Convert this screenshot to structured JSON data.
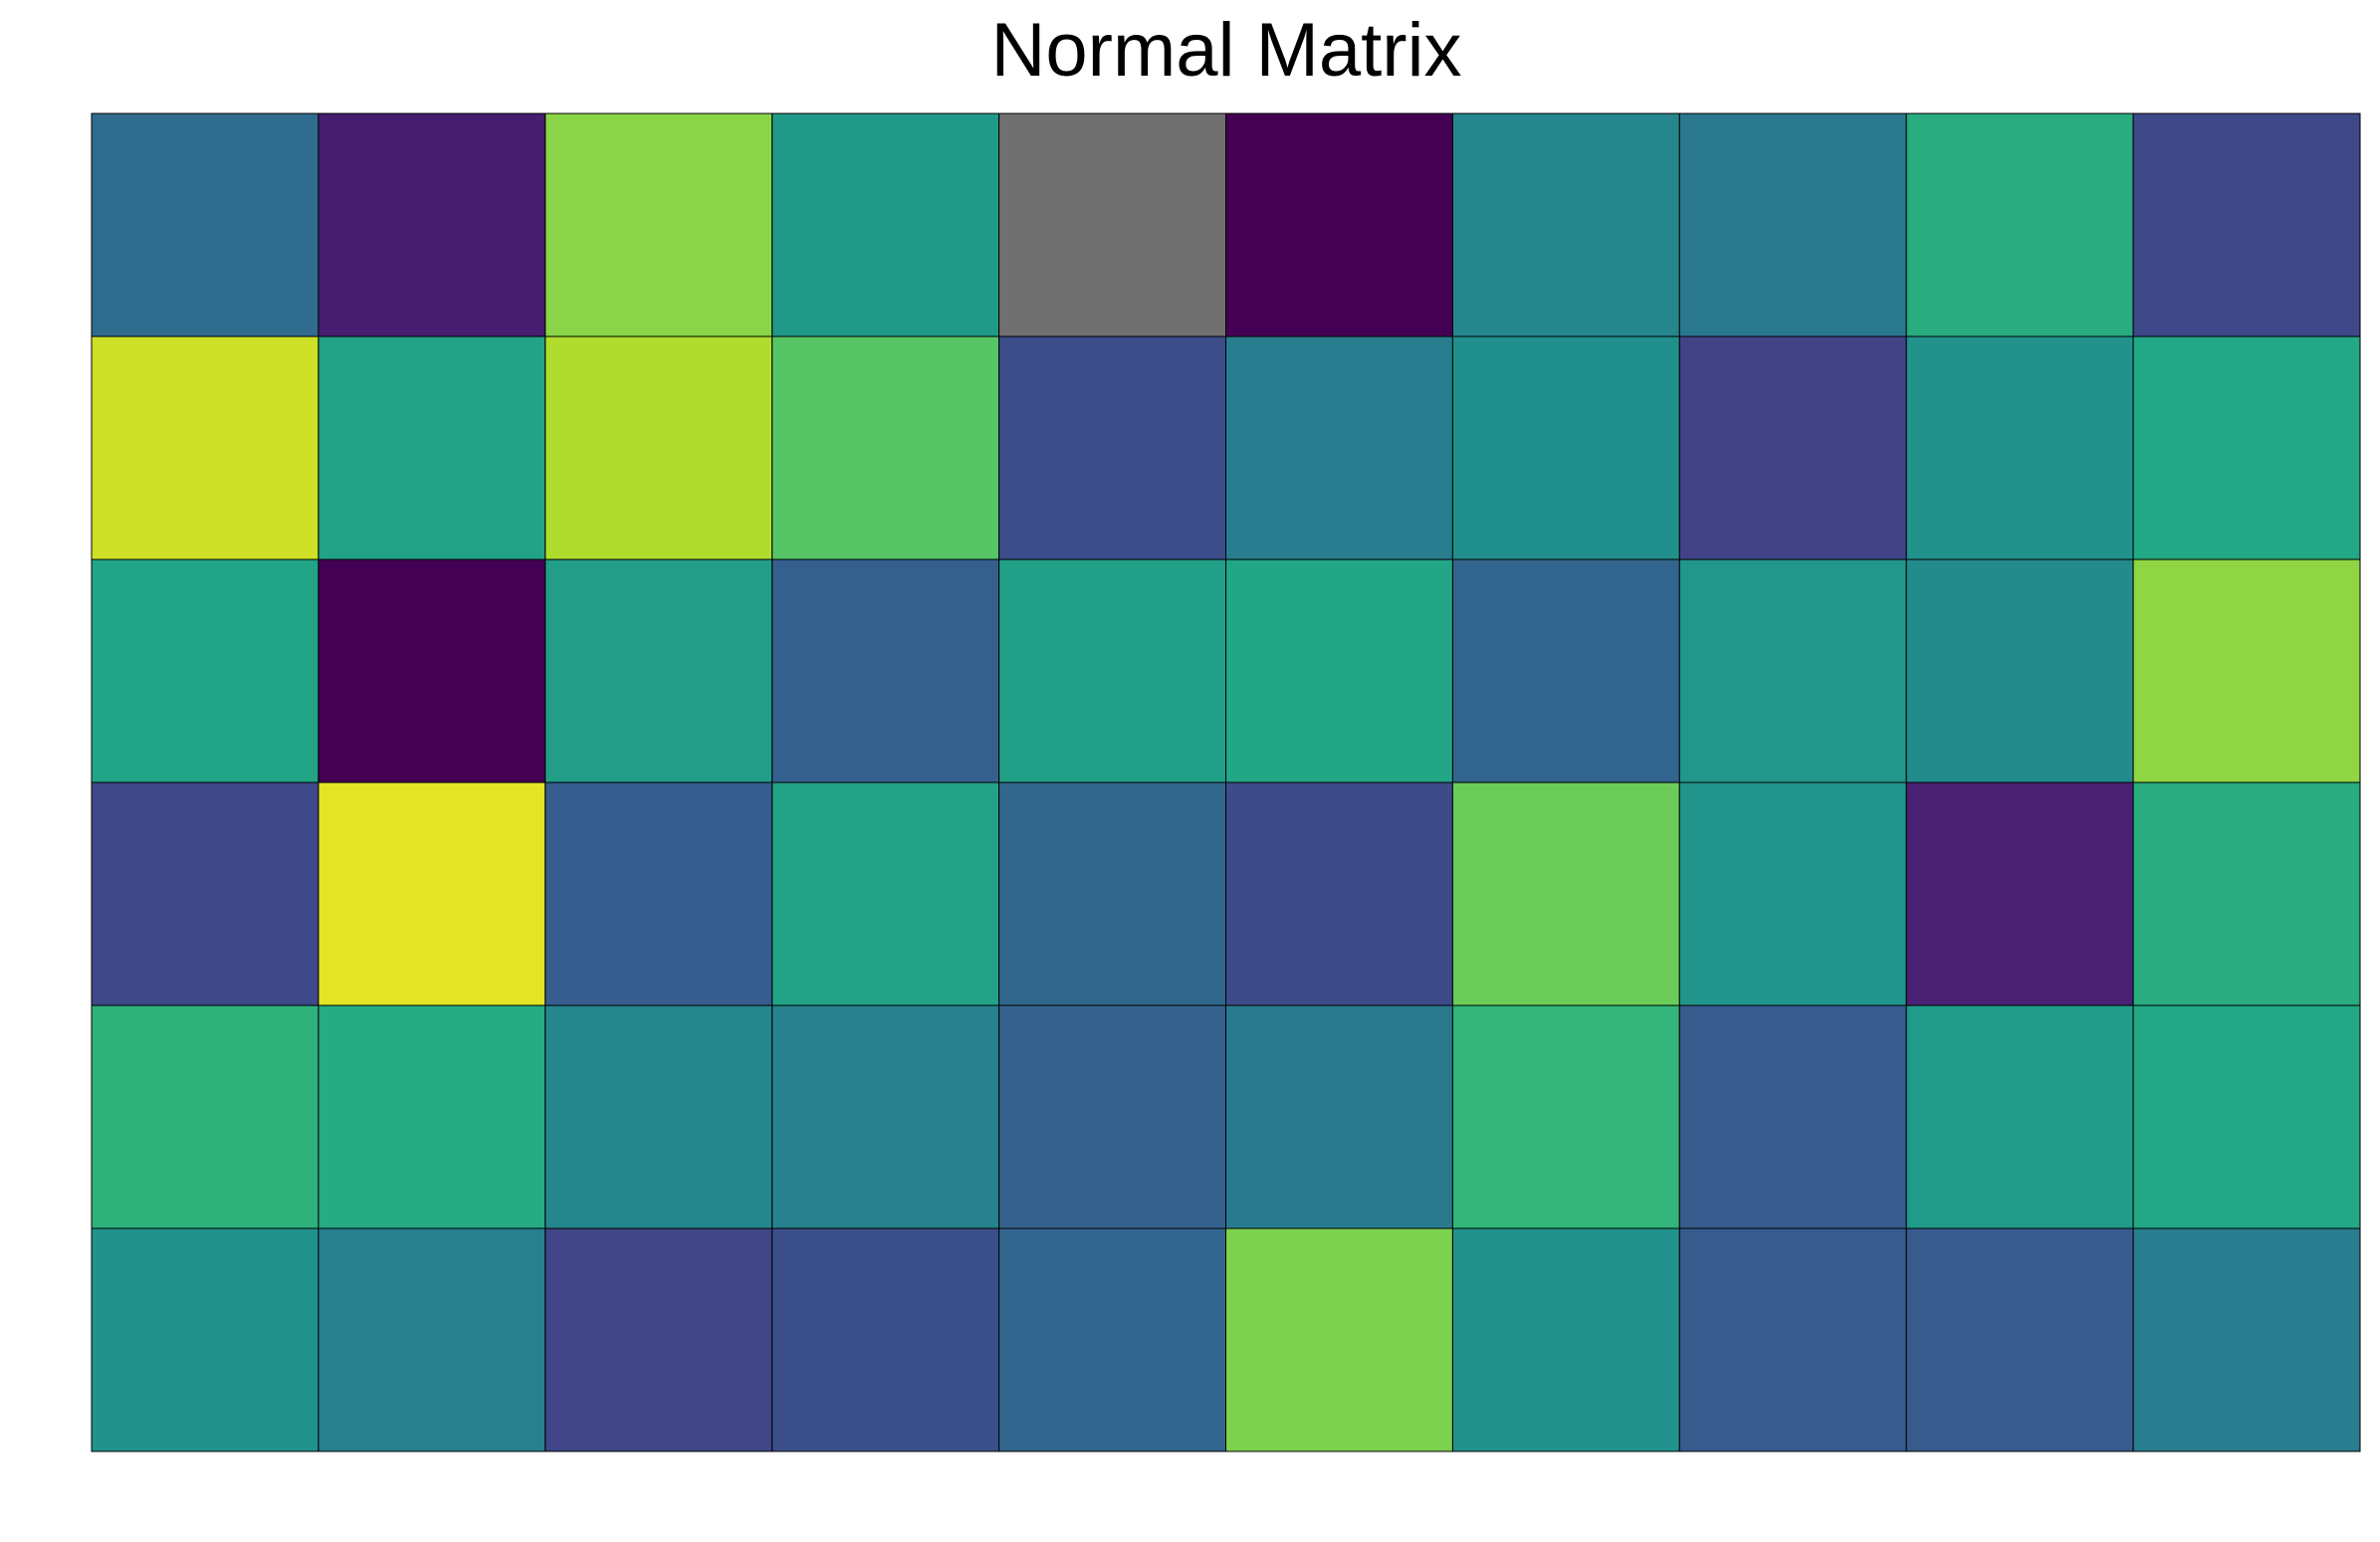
{
  "chart_data": {
    "type": "heatmap",
    "title": "Normal Matrix",
    "rows": 6,
    "cols": 10,
    "colormap": "viridis",
    "vmin": -2.6,
    "vmax": 2.6,
    "missing_color": "#707070",
    "grid": true,
    "values": [
      [
        -0.78,
        -2.18,
        1.68,
        0.18,
        null,
        -2.6,
        -0.22,
        -0.52,
        0.62,
        -1.48
      ],
      [
        2.22,
        0.38,
        1.98,
        1.22,
        -1.38,
        -0.42,
        -0.02,
        -1.58,
        0.02,
        0.52
      ],
      [
        0.42,
        -2.6,
        0.28,
        -1.02,
        0.32,
        0.48,
        -0.92,
        0.12,
        -0.12,
        1.72
      ],
      [
        -1.48,
        2.38,
        -1.08,
        0.38,
        -0.88,
        -1.42,
        1.42,
        0.08,
        -2.12,
        0.62
      ],
      [
        0.72,
        0.58,
        -0.22,
        -0.32,
        -0.98,
        -0.48,
        0.78,
        -1.12,
        0.22,
        0.52
      ],
      [
        0.02,
        -0.38,
        -1.52,
        -1.32,
        -0.92,
        1.58,
        0.02,
        -1.12,
        -1.12,
        -0.42
      ]
    ]
  }
}
